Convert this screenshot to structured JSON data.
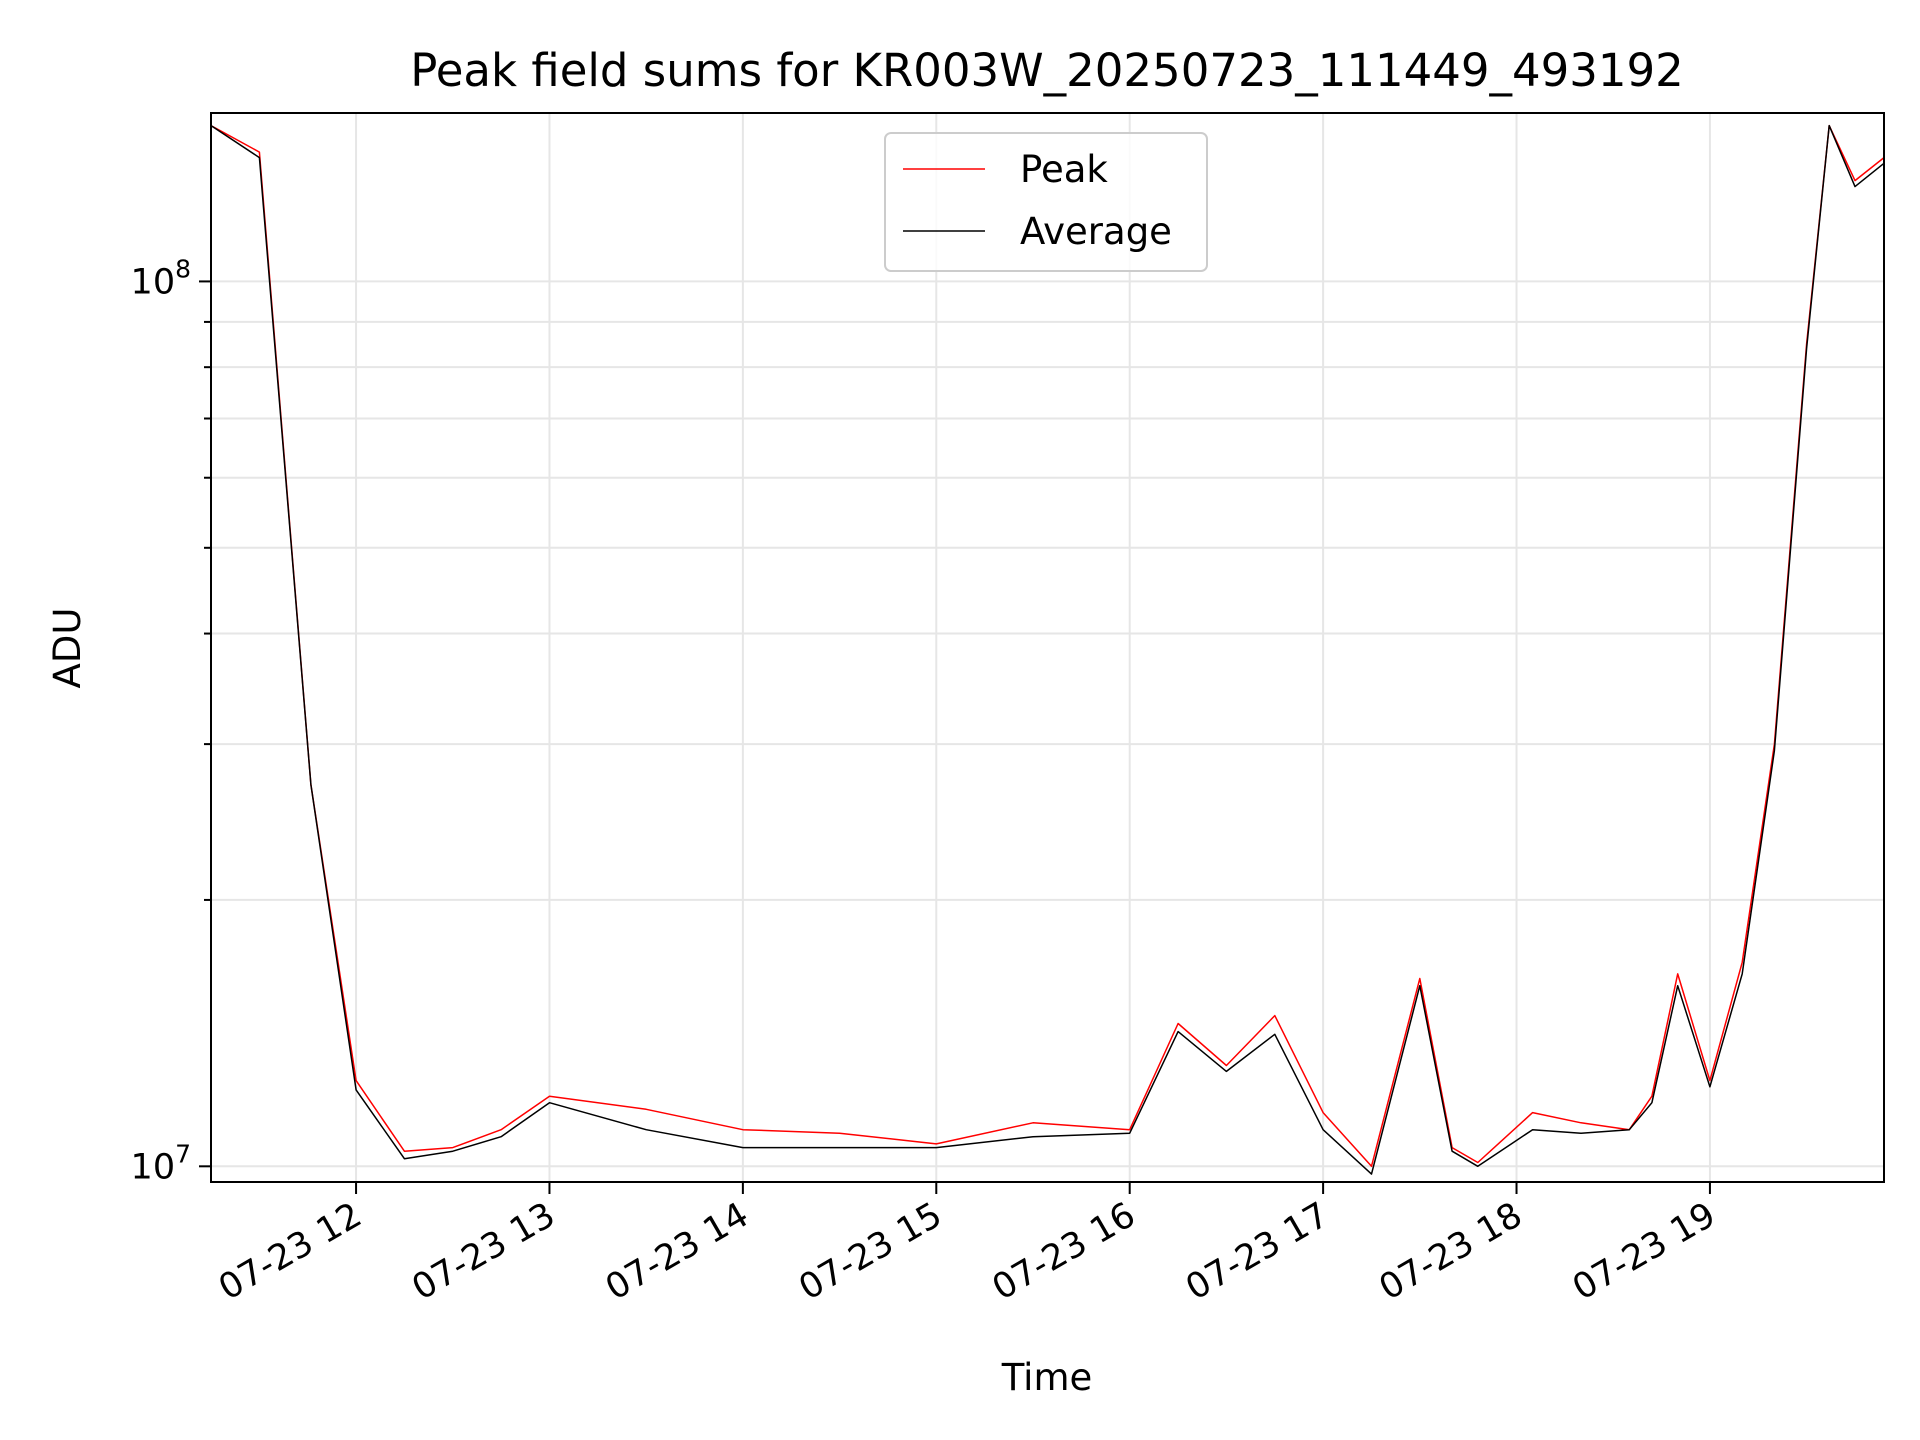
{
  "chart_data": {
    "type": "line",
    "title": "Peak field sums for KR003W_20250723_111449_493192",
    "xlabel": "Time",
    "ylabel": "ADU",
    "yscale": "log",
    "ylim": [
      9600000,
      155000000
    ],
    "xlim": [
      "2025-07-23 11:15",
      "2025-07-23 19:54"
    ],
    "x_ticks": [
      "07-23 12",
      "07-23 13",
      "07-23 14",
      "07-23 15",
      "07-23 16",
      "07-23 17",
      "07-23 18",
      "07-23 19"
    ],
    "y_ticks": [
      {
        "base": "10",
        "exp": "7",
        "value": 10000000
      },
      {
        "base": "10",
        "exp": "8",
        "value": 100000000
      }
    ],
    "grid": true,
    "legend_position": "top-center",
    "x": [
      "2025-07-23 11:15",
      "2025-07-23 11:30",
      "2025-07-23 11:46",
      "2025-07-23 12:00",
      "2025-07-23 12:15",
      "2025-07-23 12:30",
      "2025-07-23 12:45",
      "2025-07-23 13:00",
      "2025-07-23 13:30",
      "2025-07-23 14:00",
      "2025-07-23 14:30",
      "2025-07-23 15:00",
      "2025-07-23 15:30",
      "2025-07-23 16:00",
      "2025-07-23 16:15",
      "2025-07-23 16:30",
      "2025-07-23 16:45",
      "2025-07-23 17:00",
      "2025-07-23 17:15",
      "2025-07-23 17:30",
      "2025-07-23 17:40",
      "2025-07-23 17:48",
      "2025-07-23 18:05",
      "2025-07-23 18:20",
      "2025-07-23 18:35",
      "2025-07-23 18:42",
      "2025-07-23 18:50",
      "2025-07-23 19:00",
      "2025-07-23 19:10",
      "2025-07-23 19:20",
      "2025-07-23 19:30",
      "2025-07-23 19:37",
      "2025-07-23 19:45",
      "2025-07-23 19:54"
    ],
    "series": [
      {
        "name": "Peak",
        "color": "#ff0000",
        "values": [
          150000000,
          140000000,
          27000000,
          12500000,
          10400000,
          10500000,
          11000000,
          12000000,
          11600000,
          11000000,
          10900000,
          10600000,
          11200000,
          11000000,
          14500000,
          13000000,
          14800000,
          11500000,
          10000000,
          16300000,
          10500000,
          10100000,
          11500000,
          11200000,
          11000000,
          12000000,
          16500000,
          12500000,
          17000000,
          30000000,
          85000000,
          150000000,
          130000000,
          138000000
        ]
      },
      {
        "name": "Average",
        "color": "#000000",
        "values": [
          150000000,
          138000000,
          27000000,
          12200000,
          10200000,
          10400000,
          10800000,
          11800000,
          11000000,
          10500000,
          10500000,
          10500000,
          10800000,
          10900000,
          14200000,
          12800000,
          14100000,
          11000000,
          9800000,
          16000000,
          10400000,
          10000000,
          11000000,
          10900000,
          11000000,
          11800000,
          16000000,
          12300000,
          16500000,
          29500000,
          84000000,
          150000000,
          128000000,
          136000000
        ]
      }
    ]
  }
}
